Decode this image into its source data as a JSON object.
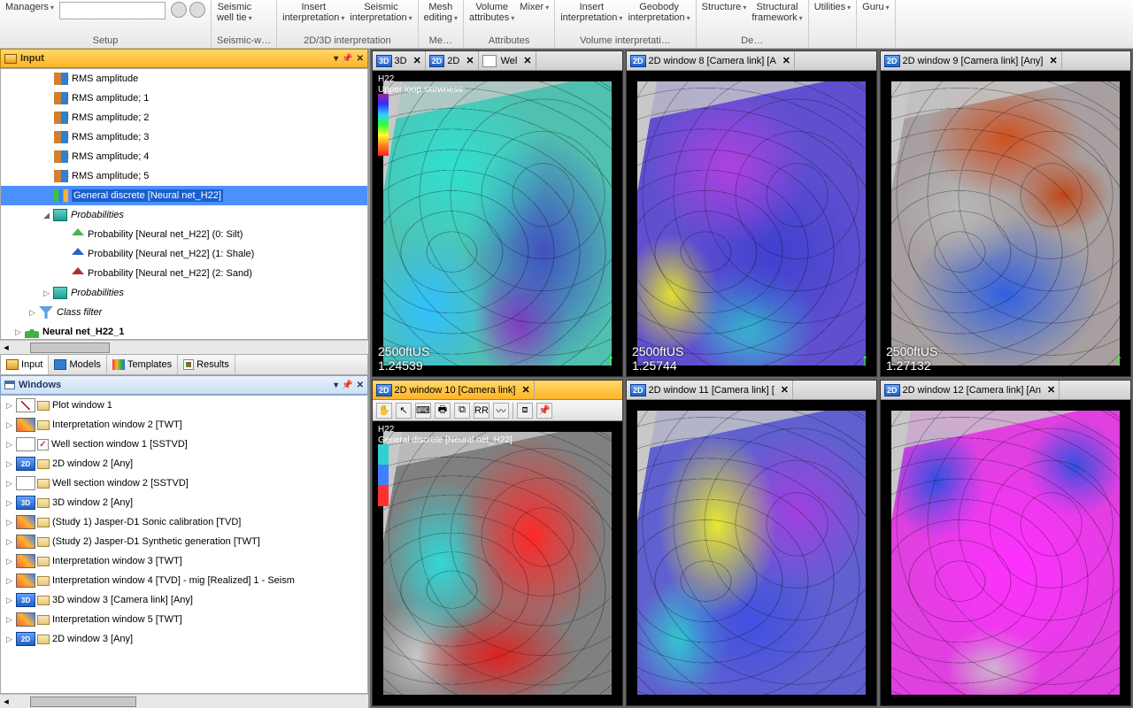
{
  "ribbon": {
    "groups": [
      {
        "caption": "Setup",
        "items": [
          {
            "l": "Managers",
            "dd": 1
          }
        ]
      },
      {
        "caption": "Seismic-w…",
        "items": [
          {
            "l": "Seismic\nwell tie",
            "dd": 1
          }
        ]
      },
      {
        "caption": "2D/3D interpretation",
        "items": [
          {
            "l": "Insert\ninterpretation",
            "dd": 1
          },
          {
            "l": "Seismic\ninterpretation",
            "dd": 1
          }
        ]
      },
      {
        "caption": "Me…",
        "items": [
          {
            "l": "Mesh\nediting",
            "dd": 1
          }
        ]
      },
      {
        "caption": "Attributes",
        "items": [
          {
            "l": "Volume\nattributes",
            "dd": 1
          },
          {
            "l": "Mixer",
            "dd": 1
          }
        ]
      },
      {
        "caption": "Volume interpretati…",
        "items": [
          {
            "l": "Insert\ninterpretation",
            "dd": 1
          },
          {
            "l": "Geobody\ninterpretation",
            "dd": 1
          }
        ]
      },
      {
        "caption": "De…",
        "items": [
          {
            "l": "Structure",
            "dd": 1
          },
          {
            "l": "Structural\nframework",
            "dd": 1
          }
        ]
      },
      {
        "caption": "",
        "items": [
          {
            "l": "Utilities",
            "dd": 1
          }
        ]
      },
      {
        "caption": "",
        "items": [
          {
            "l": "Guru",
            "dd": 1
          }
        ]
      }
    ]
  },
  "input_panel": {
    "title": "Input",
    "tree": [
      {
        "ind": 60,
        "ico": "ico-rms",
        "l": "RMS amplitude"
      },
      {
        "ind": 60,
        "ico": "ico-rms",
        "l": "RMS amplitude; 1"
      },
      {
        "ind": 60,
        "ico": "ico-rms",
        "l": "RMS amplitude; 2"
      },
      {
        "ind": 60,
        "ico": "ico-rms",
        "l": "RMS amplitude; 3"
      },
      {
        "ind": 60,
        "ico": "ico-rms",
        "l": "RMS amplitude; 4"
      },
      {
        "ind": 60,
        "ico": "ico-rms",
        "l": "RMS amplitude; 5"
      },
      {
        "ind": 60,
        "ico": "ico-nn",
        "l": "General discrete [Neural net_H22]",
        "sel": 1
      },
      {
        "ind": 46,
        "exp": "◢",
        "ico": "ico-fold",
        "l": "Probabilities",
        "it": 1
      },
      {
        "ind": 80,
        "ico": "ico-house si",
        "l": "Probability [Neural net_H22] (0: Silt)"
      },
      {
        "ind": 80,
        "ico": "ico-house sh",
        "l": "Probability [Neural net_H22] (1: Shale)"
      },
      {
        "ind": 80,
        "ico": "ico-house",
        "l": "Probability [Neural net_H22] (2: Sand)"
      },
      {
        "ind": 46,
        "exp": "▷",
        "ico": "ico-fold",
        "l": "Probabilities",
        "it": 1
      },
      {
        "ind": 30,
        "exp": "▷",
        "ico": "ico-filter",
        "l": "Class filter",
        "it": 1
      },
      {
        "ind": 14,
        "exp": "▷",
        "ico": "ico-net",
        "l": "Neural net_H22_1",
        "b": 1
      }
    ]
  },
  "left_tabs": [
    {
      "ico": "ti-inp",
      "l": "Input"
    },
    {
      "ico": "ti-mod",
      "l": "Models"
    },
    {
      "ico": "ti-tpl",
      "l": "Templates"
    },
    {
      "ico": "ti-res",
      "l": "Results"
    }
  ],
  "windows_panel": {
    "title": "Windows",
    "items": [
      {
        "ico": "wplot",
        "l": "Plot window 1"
      },
      {
        "ico": "wint",
        "l": "Interpretation window 2 [TWT]"
      },
      {
        "ico": "wwell",
        "chk": 1,
        "l": "Well section window 1 [SSTVD]"
      },
      {
        "ico": "w2d",
        "badge": "2D",
        "l": "2D window 2 [Any]"
      },
      {
        "ico": "wwell",
        "l": "Well section window 2 [SSTVD]"
      },
      {
        "ico": "w3d",
        "badge": "3D",
        "l": "3D window 2 [Any]"
      },
      {
        "ico": "wint",
        "l": "(Study 1) Jasper-D1 Sonic calibration [TVD]"
      },
      {
        "ico": "wint",
        "l": "(Study 2) Jasper-D1 Synthetic generation [TWT]"
      },
      {
        "ico": "wint",
        "l": "Interpretation window 3 [TWT]"
      },
      {
        "ico": "wint",
        "l": "Interpretation window 4 [TVD] - mig [Realized] 1 - Seism"
      },
      {
        "ico": "w3d",
        "badge": "3D",
        "l": "3D window 3 [Camera link]  [Any]"
      },
      {
        "ico": "wint",
        "l": "Interpretation window 5 [TWT]"
      },
      {
        "ico": "w2d",
        "badge": "2D",
        "l": "2D window 3 [Any]"
      }
    ]
  },
  "viewports": [
    {
      "tabs": [
        {
          "b": "3D",
          "l": "3D",
          "x": 1
        },
        {
          "b": "2D",
          "l": "2D",
          "x": 1
        },
        {
          "b": "",
          "l": "Wel",
          "x": 1,
          "wico": 1
        }
      ],
      "active": 0,
      "map": "map1",
      "cb": "cb-rainbow",
      "attr": "H22\nUpper loop skewness",
      "scale": "2500ftUS",
      "val": "1.24539"
    },
    {
      "tabs": [
        {
          "b": "2D",
          "l": "2D window 8 [Camera link]  [A",
          "x": 1
        }
      ],
      "active": 0,
      "map": "map2",
      "scale": "2500ftUS",
      "val": "1.25744"
    },
    {
      "tabs": [
        {
          "b": "2D",
          "l": "2D window 9 [Camera link]  [Any]",
          "x": 1
        }
      ],
      "active": 0,
      "map": "map3",
      "scale": "2500ftUS",
      "val": "1.27132"
    },
    {
      "tabs": [
        {
          "b": "2D",
          "l": "2D window 10 [Camera link]",
          "x": 1
        }
      ],
      "active": 1,
      "toolbar": 1,
      "map": "map4",
      "cb": "cb-facies",
      "attr": "H22\nGeneral discrete [Neural net_H22]",
      "scale": "",
      "val": ""
    },
    {
      "tabs": [
        {
          "b": "2D",
          "l": "2D window 11 [Camera link]  [",
          "x": 1
        }
      ],
      "active": 0,
      "map": "map5",
      "scale": "",
      "val": ""
    },
    {
      "tabs": [
        {
          "b": "2D",
          "l": "2D window 12 [Camera link]  [An",
          "x": 1
        }
      ],
      "active": 0,
      "map": "map6",
      "scale": "",
      "val": ""
    }
  ],
  "toolbar_icons": [
    "✋",
    "↖",
    "⌨",
    "🖶",
    "⧉",
    "RR",
    "〰",
    "|",
    "⧈",
    "📌"
  ]
}
